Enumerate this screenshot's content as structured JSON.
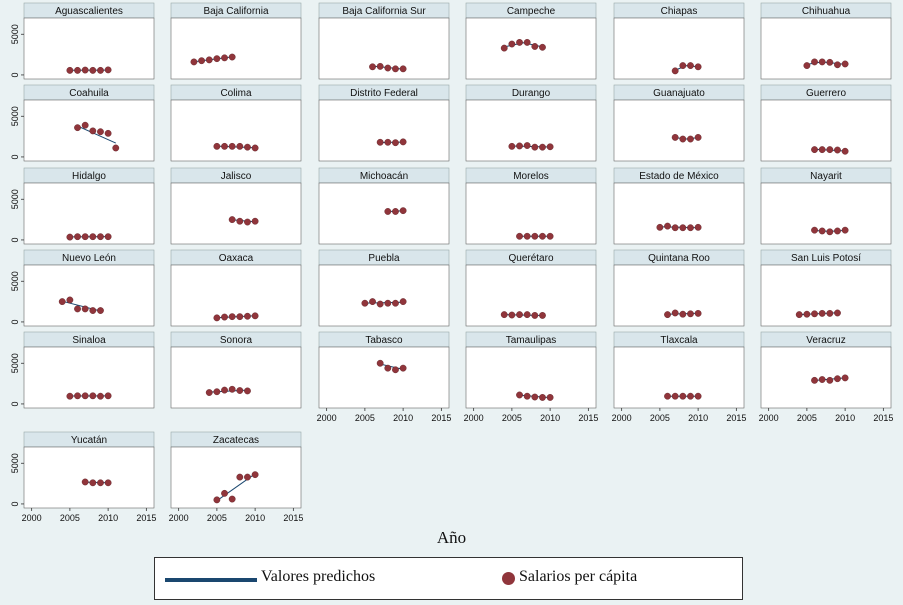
{
  "chart_data": {
    "type": "scatter",
    "xlabel": "Año",
    "xticks": [
      2000,
      2005,
      2010,
      2015
    ],
    "yticks": [
      0,
      5000
    ],
    "xlim": [
      1999,
      2016
    ],
    "ylim": [
      -500,
      7000
    ],
    "colors": {
      "marker": "#90353b",
      "line": "#1a476f",
      "background": "#eaf2f3",
      "panel_header": "#d9e6eb"
    },
    "legend": {
      "line_label": "Valores predichos",
      "marker_label": "Salarios per cápita",
      "placement": "bottom"
    },
    "panels": [
      {
        "name": "Aguascalientes",
        "x": [
          2005,
          2006,
          2007,
          2008,
          2009,
          2010
        ],
        "y": [
          560,
          560,
          600,
          560,
          560,
          620
        ],
        "fit": [
          [
            2005,
            580
          ],
          [
            2010,
            590
          ]
        ]
      },
      {
        "name": "Baja California",
        "x": [
          2002,
          2003,
          2004,
          2005,
          2006,
          2007
        ],
        "y": [
          1600,
          1750,
          1850,
          2000,
          2100,
          2200
        ],
        "fit": [
          [
            2002,
            1620
          ],
          [
            2007,
            2220
          ]
        ]
      },
      {
        "name": "Baja California Sur",
        "x": [
          2006,
          2007,
          2008,
          2009,
          2010
        ],
        "y": [
          1000,
          1050,
          850,
          750,
          750
        ],
        "fit": [
          [
            2006,
            1080
          ],
          [
            2010,
            720
          ]
        ]
      },
      {
        "name": "Campeche",
        "x": [
          2004,
          2005,
          2006,
          2007,
          2008,
          2009
        ],
        "y": [
          3300,
          3800,
          4000,
          4000,
          3500,
          3400
        ],
        "fit": [
          [
            2004,
            3450
          ],
          [
            2006.5,
            3950
          ],
          [
            2009,
            3450
          ]
        ]
      },
      {
        "name": "Chiapas",
        "x": [
          2007,
          2008,
          2009,
          2010
        ],
        "y": [
          500,
          1150,
          1150,
          1000
        ],
        "fit": [
          [
            2007,
            600
          ],
          [
            2008.5,
            1150
          ],
          [
            2010,
            1000
          ]
        ]
      },
      {
        "name": "Chihuahua",
        "x": [
          2005,
          2006,
          2007,
          2008,
          2009,
          2010
        ],
        "y": [
          1150,
          1600,
          1600,
          1550,
          1250,
          1350
        ],
        "fit": [
          [
            2005,
            1300
          ],
          [
            2007,
            1600
          ],
          [
            2010,
            1300
          ]
        ]
      },
      {
        "name": "Coahuila",
        "x": [
          2006,
          2007,
          2008,
          2009,
          2010,
          2011
        ],
        "y": [
          3600,
          3900,
          3200,
          3100,
          2900,
          1100
        ],
        "fit": [
          [
            2006,
            3800
          ],
          [
            2011,
            1700
          ]
        ]
      },
      {
        "name": "Colima",
        "x": [
          2005,
          2006,
          2007,
          2008,
          2009,
          2010
        ],
        "y": [
          1300,
          1300,
          1300,
          1300,
          1200,
          1100
        ],
        "fit": [
          [
            2005,
            1330
          ],
          [
            2010,
            1130
          ]
        ]
      },
      {
        "name": "Distrito Federal",
        "x": [
          2007,
          2008,
          2009,
          2010
        ],
        "y": [
          1800,
          1800,
          1750,
          1850
        ],
        "fit": [
          [
            2007,
            1780
          ],
          [
            2010,
            1820
          ]
        ]
      },
      {
        "name": "Durango",
        "x": [
          2005,
          2006,
          2007,
          2008,
          2009,
          2010
        ],
        "y": [
          1300,
          1350,
          1400,
          1200,
          1200,
          1250
        ],
        "fit": [
          [
            2005,
            1350
          ],
          [
            2010,
            1220
          ]
        ]
      },
      {
        "name": "Guanajuato",
        "x": [
          2007,
          2008,
          2009,
          2010
        ],
        "y": [
          2400,
          2200,
          2200,
          2400
        ],
        "fit": [
          [
            2007,
            2380
          ],
          [
            2008.5,
            2200
          ],
          [
            2010,
            2380
          ]
        ]
      },
      {
        "name": "Guerrero",
        "x": [
          2006,
          2007,
          2008,
          2009,
          2010
        ],
        "y": [
          900,
          900,
          900,
          850,
          700
        ],
        "fit": [
          [
            2006,
            950
          ],
          [
            2010,
            730
          ]
        ]
      },
      {
        "name": "Hidalgo",
        "x": [
          2005,
          2006,
          2007,
          2008,
          2009,
          2010
        ],
        "y": [
          350,
          400,
          400,
          400,
          400,
          400
        ],
        "fit": [
          [
            2005,
            370
          ],
          [
            2010,
            410
          ]
        ]
      },
      {
        "name": "Jalisco",
        "x": [
          2007,
          2008,
          2009,
          2010
        ],
        "y": [
          2500,
          2300,
          2200,
          2300
        ],
        "fit": [
          [
            2007,
            2480
          ],
          [
            2010,
            2220
          ]
        ]
      },
      {
        "name": "Michoacán",
        "x": [
          2008,
          2009,
          2010
        ],
        "y": [
          3500,
          3500,
          3600
        ],
        "fit": [
          [
            2008,
            3480
          ],
          [
            2010,
            3580
          ]
        ]
      },
      {
        "name": "Morelos",
        "x": [
          2006,
          2007,
          2008,
          2009,
          2010
        ],
        "y": [
          450,
          450,
          450,
          450,
          450
        ],
        "fit": [
          [
            2006,
            450
          ],
          [
            2010,
            450
          ]
        ]
      },
      {
        "name": "Estado de México",
        "x": [
          2005,
          2006,
          2007,
          2008,
          2009,
          2010
        ],
        "y": [
          1550,
          1700,
          1500,
          1500,
          1500,
          1550
        ],
        "fit": [
          [
            2005,
            1620
          ],
          [
            2010,
            1500
          ]
        ]
      },
      {
        "name": "Nayarit",
        "x": [
          2006,
          2007,
          2008,
          2009,
          2010
        ],
        "y": [
          1200,
          1100,
          1000,
          1100,
          1200
        ],
        "fit": [
          [
            2006,
            1160
          ],
          [
            2008,
            1050
          ],
          [
            2010,
            1170
          ]
        ]
      },
      {
        "name": "Nuevo León",
        "x": [
          2004,
          2005,
          2006,
          2007,
          2008,
          2009
        ],
        "y": [
          2500,
          2700,
          1600,
          1600,
          1400,
          1400
        ],
        "fit": [
          [
            2004,
            2550
          ],
          [
            2009,
            1350
          ]
        ]
      },
      {
        "name": "Oaxaca",
        "x": [
          2005,
          2006,
          2007,
          2008,
          2009,
          2010
        ],
        "y": [
          500,
          600,
          650,
          650,
          700,
          750
        ],
        "fit": [
          [
            2005,
            520
          ],
          [
            2010,
            760
          ]
        ]
      },
      {
        "name": "Puebla",
        "x": [
          2005,
          2006,
          2007,
          2008,
          2009,
          2010
        ],
        "y": [
          2300,
          2500,
          2200,
          2300,
          2300,
          2500
        ],
        "fit": [
          [
            2005,
            2320
          ],
          [
            2010,
            2420
          ]
        ]
      },
      {
        "name": "Querétaro",
        "x": [
          2004,
          2005,
          2006,
          2007,
          2008,
          2009
        ],
        "y": [
          900,
          850,
          900,
          900,
          800,
          800
        ],
        "fit": [
          [
            2004,
            900
          ],
          [
            2009,
            790
          ]
        ]
      },
      {
        "name": "Quintana Roo",
        "x": [
          2006,
          2007,
          2008,
          2009,
          2010
        ],
        "y": [
          900,
          1100,
          950,
          1000,
          1050
        ],
        "fit": [
          [
            2006,
            940
          ],
          [
            2010,
            1060
          ]
        ]
      },
      {
        "name": "San Luis Potosí",
        "x": [
          2004,
          2005,
          2006,
          2007,
          2008,
          2009
        ],
        "y": [
          900,
          950,
          1000,
          1050,
          1050,
          1100
        ],
        "fit": [
          [
            2004,
            900
          ],
          [
            2009,
            1120
          ]
        ]
      },
      {
        "name": "Sinaloa",
        "x": [
          2005,
          2006,
          2007,
          2008,
          2009,
          2010
        ],
        "y": [
          950,
          1000,
          1000,
          1000,
          950,
          1000
        ],
        "fit": [
          [
            2005,
            980
          ],
          [
            2010,
            990
          ]
        ]
      },
      {
        "name": "Sonora",
        "x": [
          2004,
          2005,
          2006,
          2007,
          2008,
          2009
        ],
        "y": [
          1400,
          1500,
          1700,
          1800,
          1650,
          1600
        ],
        "fit": [
          [
            2004,
            1450
          ],
          [
            2009,
            1700
          ]
        ]
      },
      {
        "name": "Tabasco",
        "x": [
          2007,
          2008,
          2009,
          2010
        ],
        "y": [
          5000,
          4400,
          4200,
          4400
        ],
        "fit": [
          [
            2007,
            4900
          ],
          [
            2010,
            4250
          ]
        ]
      },
      {
        "name": "Tamaulipas",
        "x": [
          2006,
          2007,
          2008,
          2009,
          2010
        ],
        "y": [
          1100,
          950,
          850,
          800,
          800
        ],
        "fit": [
          [
            2006,
            1080
          ],
          [
            2010,
            780
          ]
        ]
      },
      {
        "name": "Tlaxcala",
        "x": [
          2006,
          2007,
          2008,
          2009,
          2010
        ],
        "y": [
          950,
          950,
          950,
          950,
          950
        ],
        "fit": [
          [
            2006,
            950
          ],
          [
            2010,
            950
          ]
        ]
      },
      {
        "name": "Veracruz",
        "x": [
          2006,
          2007,
          2008,
          2009,
          2010
        ],
        "y": [
          2900,
          3000,
          2900,
          3100,
          3200
        ],
        "fit": [
          [
            2006,
            2880
          ],
          [
            2010,
            3200
          ]
        ]
      },
      {
        "name": "Yucatán",
        "x": [
          2007,
          2008,
          2009,
          2010
        ],
        "y": [
          2700,
          2600,
          2600,
          2600
        ],
        "fit": [
          [
            2007,
            2680
          ],
          [
            2010,
            2600
          ]
        ]
      },
      {
        "name": "Zacatecas",
        "x": [
          2005,
          2006,
          2007,
          2008,
          2009,
          2010
        ],
        "y": [
          500,
          1300,
          600,
          3300,
          3300,
          3600
        ],
        "fit": [
          [
            2005,
            400
          ],
          [
            2010,
            3700
          ]
        ]
      }
    ]
  }
}
